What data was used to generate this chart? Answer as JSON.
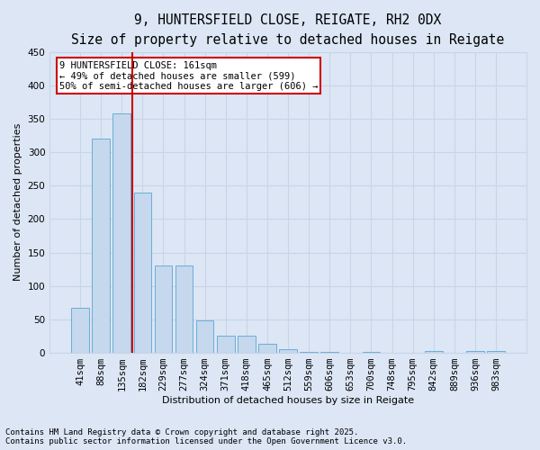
{
  "title1": "9, HUNTERSFIELD CLOSE, REIGATE, RH2 0DX",
  "title2": "Size of property relative to detached houses in Reigate",
  "xlabel": "Distribution of detached houses by size in Reigate",
  "ylabel": "Number of detached properties",
  "categories": [
    "41sqm",
    "88sqm",
    "135sqm",
    "182sqm",
    "229sqm",
    "277sqm",
    "324sqm",
    "371sqm",
    "418sqm",
    "465sqm",
    "512sqm",
    "559sqm",
    "606sqm",
    "653sqm",
    "700sqm",
    "748sqm",
    "795sqm",
    "842sqm",
    "889sqm",
    "936sqm",
    "983sqm"
  ],
  "values": [
    67,
    320,
    358,
    240,
    130,
    130,
    49,
    25,
    25,
    13,
    5,
    1,
    1,
    0,
    1,
    0,
    0,
    3,
    0,
    3,
    3
  ],
  "bar_color": "#c5d8ed",
  "bar_edge_color": "#6aaed6",
  "grid_color": "#c8d4e8",
  "background_color": "#dce6f5",
  "vline_color": "#cc0000",
  "vline_pos": 2.5,
  "annotation_text": "9 HUNTERSFIELD CLOSE: 161sqm\n← 49% of detached houses are smaller (599)\n50% of semi-detached houses are larger (606) →",
  "annotation_box_color": "#ffffff",
  "annotation_box_edge": "#cc0000",
  "footer1": "Contains HM Land Registry data © Crown copyright and database right 2025.",
  "footer2": "Contains public sector information licensed under the Open Government Licence v3.0.",
  "ylim": [
    0,
    450
  ],
  "yticks": [
    0,
    50,
    100,
    150,
    200,
    250,
    300,
    350,
    400,
    450
  ],
  "title_fontsize": 10.5,
  "subtitle_fontsize": 9,
  "axis_label_fontsize": 8,
  "tick_fontsize": 7.5,
  "footer_fontsize": 6.5,
  "annot_fontsize": 7.5
}
